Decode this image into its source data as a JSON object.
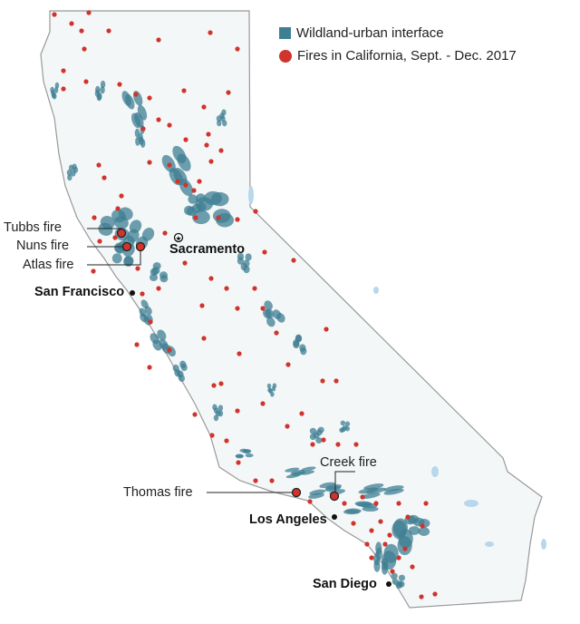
{
  "legend": {
    "wui_label": "Wildland-urban interface",
    "fires_label": "Fires in California, Sept. - Dec. 2017"
  },
  "colors": {
    "wui": "#3f7f93",
    "fire": "#d0342c",
    "land": "#f4f7f8",
    "outline": "#999999",
    "water": "#b7d7ec"
  },
  "fires": {
    "tubbs": "Tubbs fire",
    "nuns": "Nuns fire",
    "atlas": "Atlas fire",
    "thomas": "Thomas fire",
    "creek": "Creek fire"
  },
  "cities": {
    "sacramento": "Sacramento",
    "san_francisco": "San Francisco",
    "los_angeles": "Los Angeles",
    "san_diego": "San Diego"
  },
  "icons": {
    "capital": "star-in-circle-icon",
    "city": "dot-icon"
  }
}
